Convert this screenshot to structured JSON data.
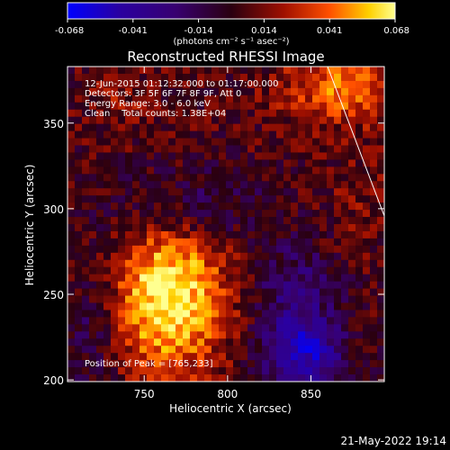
{
  "chart_data": {
    "type": "heatmap",
    "title": "Reconstructed RHESSI Image",
    "xlabel": "Heliocentric X (arcsec)",
    "ylabel": "Heliocentric Y (arcsec)",
    "xlim": [
      704,
      894
    ],
    "ylim": [
      199,
      383
    ],
    "xticks": [
      750,
      800,
      850
    ],
    "yticks": [
      200,
      250,
      300,
      350
    ],
    "colorbar": {
      "range": [
        -0.068,
        0.068
      ],
      "ticks": [
        "-0.068",
        "-0.041",
        "-0.014",
        "0.014",
        "0.041",
        "0.068"
      ],
      "unit_label": "(photons cm⁻² s⁻¹ asec⁻²)"
    },
    "annotations": [
      "12-Jun-2015 01:12:32.000 to 01:17:00.000",
      "Detectors: 3F 5F 6F 7F 8F 9F, Att 0",
      "Energy Range: 3.0 - 6.0 keV",
      "Clean    Total counts: 1.38E+04"
    ],
    "peak_label": "Position of Peak = [765,233]",
    "peak_position": [
      765,
      233
    ],
    "sources": [
      {
        "x": 765,
        "y": 250,
        "sx": 24,
        "sy": 32,
        "amp": 0.066
      },
      {
        "x": 870,
        "y": 370,
        "sx": 26,
        "sy": 14,
        "amp": 0.04
      },
      {
        "x": 735,
        "y": 365,
        "sx": 16,
        "sy": 14,
        "amp": 0.012
      },
      {
        "x": 820,
        "y": 300,
        "sx": 30,
        "sy": 22,
        "amp": 0.014
      },
      {
        "x": 880,
        "y": 305,
        "sx": 14,
        "sy": 20,
        "amp": 0.01
      },
      {
        "x": 790,
        "y": 300,
        "sx": 40,
        "sy": 18,
        "amp": -0.032
      },
      {
        "x": 845,
        "y": 215,
        "sx": 18,
        "sy": 16,
        "amp": -0.055
      },
      {
        "x": 720,
        "y": 230,
        "sx": 12,
        "sy": 30,
        "amp": -0.02
      },
      {
        "x": 840,
        "y": 255,
        "sx": 18,
        "sy": 18,
        "amp": -0.028
      }
    ]
  },
  "footer_timestamp": "21-May-2022 19:14"
}
